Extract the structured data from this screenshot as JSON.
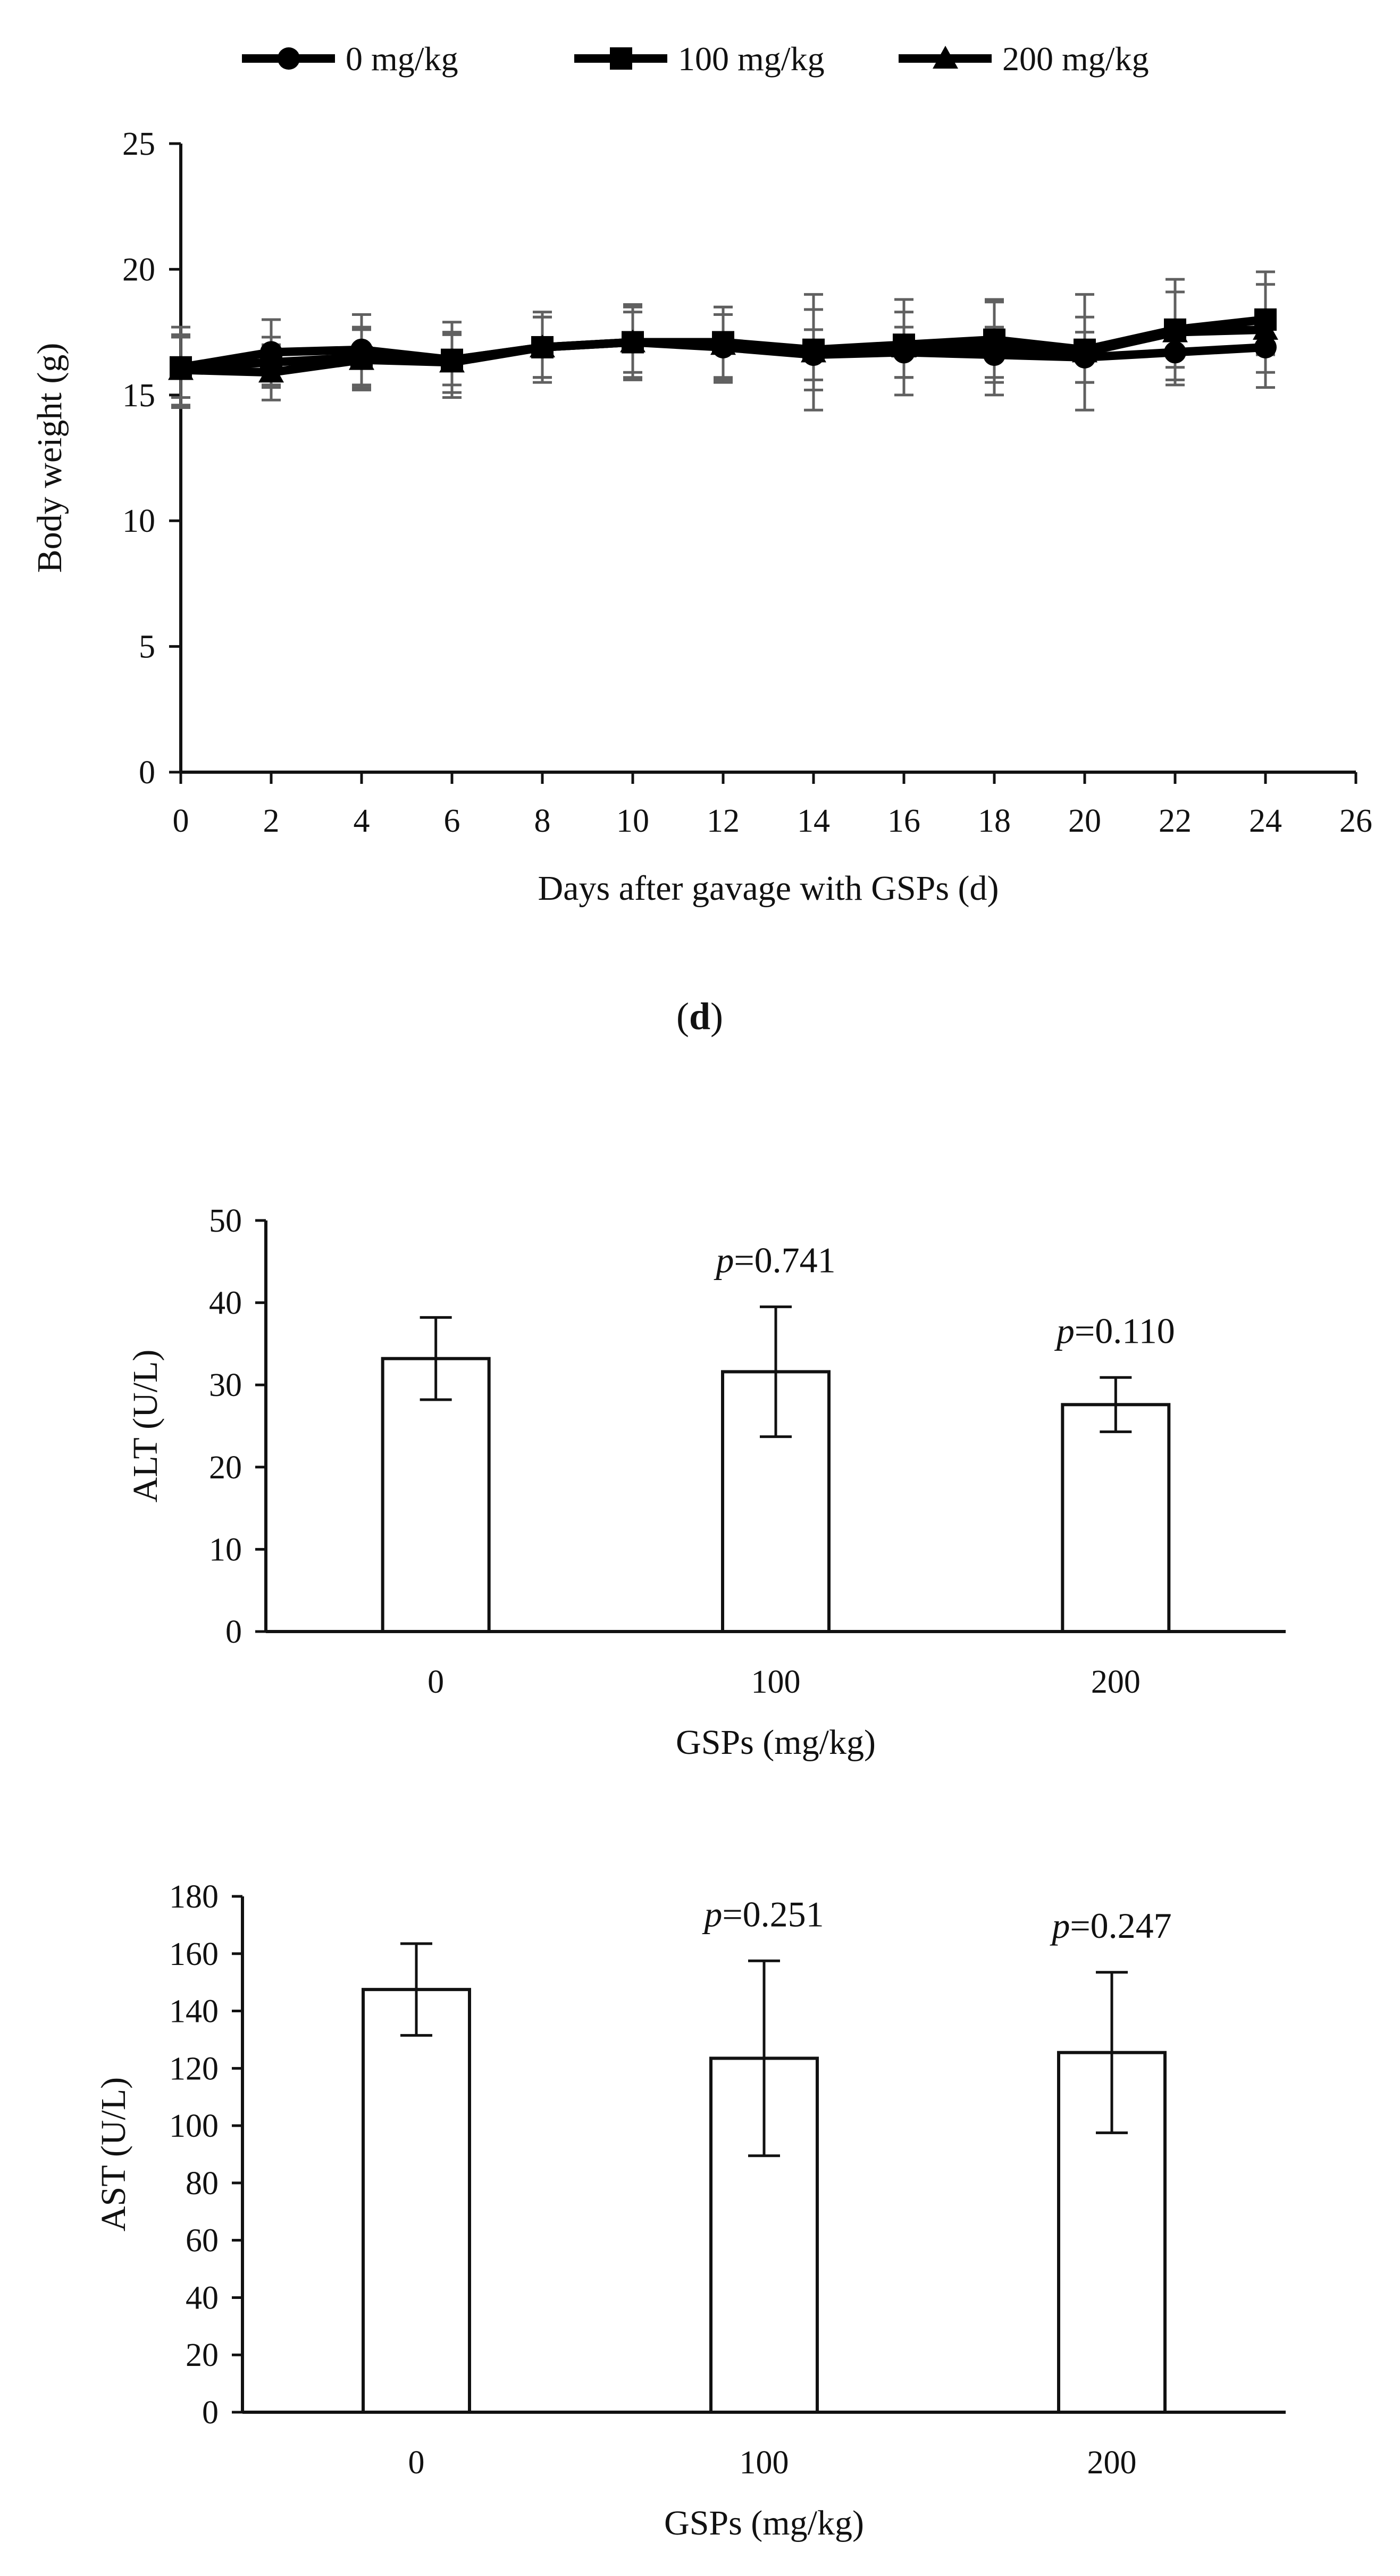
{
  "panel_label": {
    "open": "(",
    "letter": "d",
    "close": ")"
  },
  "chart_data": [
    {
      "type": "line",
      "title": "",
      "xlabel": "Days after gavage with GSPs (d)",
      "ylabel": "Body weight (g)",
      "xlim": [
        0,
        26
      ],
      "ylim": [
        0,
        25
      ],
      "xticks": [
        0,
        2,
        4,
        6,
        8,
        10,
        12,
        14,
        16,
        18,
        20,
        22,
        24,
        26
      ],
      "yticks": [
        0,
        5,
        10,
        15,
        20,
        25
      ],
      "legend_position": "top-center",
      "x": [
        0,
        2,
        4,
        6,
        8,
        10,
        12,
        14,
        16,
        18,
        20,
        22,
        24
      ],
      "series": [
        {
          "name": "0 mg/kg",
          "marker": "circle",
          "values": [
            16.1,
            16.7,
            16.8,
            16.4,
            16.9,
            17.1,
            16.9,
            16.6,
            16.7,
            16.6,
            16.5,
            16.7,
            16.9
          ],
          "errors": [
            1.6,
            1.3,
            1.4,
            1.5,
            1.2,
            1.4,
            1.3,
            1.0,
            1.0,
            1.1,
            1.0,
            1.1,
            1.0
          ]
        },
        {
          "name": "100 mg/kg",
          "marker": "square",
          "values": [
            16.1,
            16.3,
            16.5,
            16.4,
            16.9,
            17.1,
            17.1,
            16.8,
            17.0,
            17.2,
            16.8,
            17.6,
            18.0
          ],
          "errors": [
            1.2,
            1.0,
            1.2,
            1.0,
            1.2,
            1.2,
            1.4,
            1.6,
            1.3,
            1.5,
            1.3,
            1.5,
            1.4
          ]
        },
        {
          "name": "200 mg/kg",
          "marker": "triangle",
          "values": [
            16.0,
            15.9,
            16.4,
            16.3,
            16.9,
            17.1,
            17.0,
            16.7,
            16.9,
            16.9,
            16.7,
            17.5,
            17.6
          ],
          "errors": [
            1.4,
            1.1,
            1.2,
            1.2,
            1.4,
            1.5,
            1.5,
            2.3,
            1.9,
            1.9,
            2.3,
            2.1,
            2.3
          ]
        }
      ]
    },
    {
      "type": "bar",
      "title": "",
      "xlabel": "GSPs (mg/kg)",
      "ylabel": "ALT (U/L)",
      "ylim": [
        0,
        50
      ],
      "yticks": [
        0,
        10,
        20,
        30,
        40,
        50
      ],
      "categories": [
        "0",
        "100",
        "200"
      ],
      "values": [
        33.2,
        31.6,
        27.6
      ],
      "errors": [
        5.0,
        7.9,
        3.3
      ],
      "annotations": [
        {
          "category": "100",
          "italic": "p",
          "text": "=0.741"
        },
        {
          "category": "200",
          "italic": "p",
          "text": "=0.110"
        }
      ]
    },
    {
      "type": "bar",
      "title": "",
      "xlabel": "GSPs (mg/kg)",
      "ylabel": "AST (U/L)",
      "ylim": [
        0,
        180
      ],
      "yticks": [
        0,
        20,
        40,
        60,
        80,
        100,
        120,
        140,
        160,
        180
      ],
      "categories": [
        "0",
        "100",
        "200"
      ],
      "values": [
        147.5,
        123.5,
        125.5
      ],
      "errors": [
        16.0,
        34.0,
        28.0
      ],
      "annotations": [
        {
          "category": "100",
          "italic": "p",
          "text": "=0.251"
        },
        {
          "category": "200",
          "italic": "p",
          "text": "=0.247"
        }
      ]
    }
  ]
}
